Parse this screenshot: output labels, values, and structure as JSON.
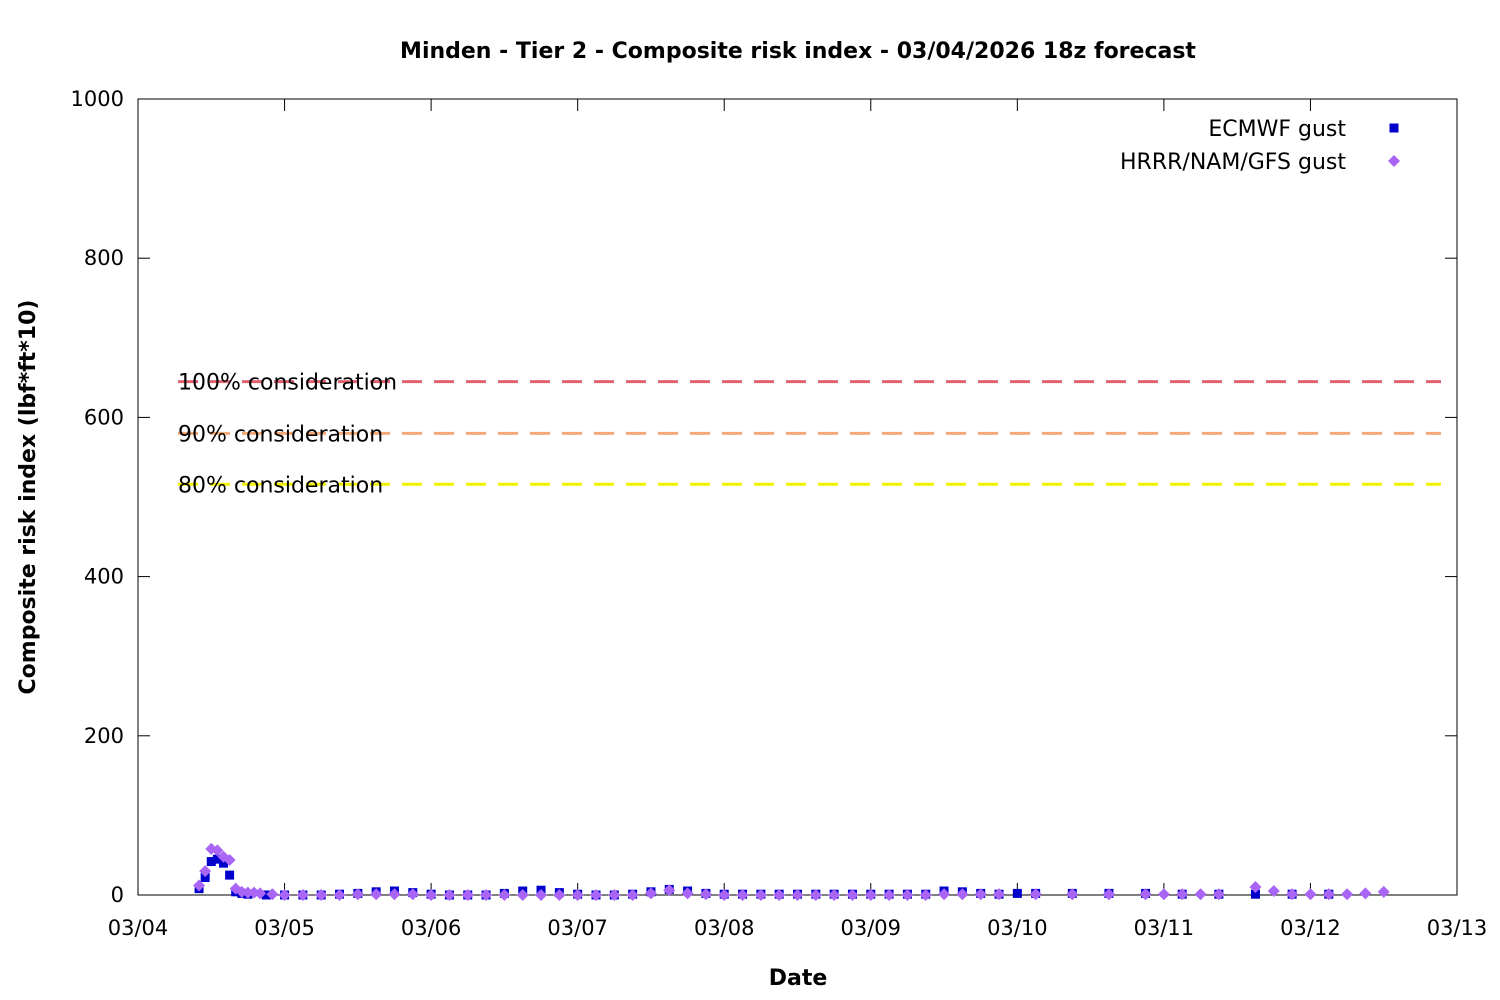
{
  "chart_data": {
    "type": "scatter",
    "title": "Minden - Tier 2 - Composite risk index - 03/04/2026 18z forecast",
    "xlabel": "Date",
    "ylabel": "Composite risk index (lbf*ft*10)",
    "xlim": [
      "03/04",
      "03/13"
    ],
    "ylim": [
      0,
      1000
    ],
    "x_ticks": [
      "03/04",
      "03/05",
      "03/06",
      "03/07",
      "03/08",
      "03/09",
      "03/10",
      "03/11",
      "03/12",
      "03/13"
    ],
    "y_ticks": [
      0,
      200,
      400,
      600,
      800,
      1000
    ],
    "grid": false,
    "legend_position": "top-right",
    "thresholds": [
      {
        "label": "100% consideration",
        "value": 645,
        "color": "#e06070"
      },
      {
        "label": "90% consideration",
        "value": 580,
        "color": "#f4aa78"
      },
      {
        "label": "80% consideration",
        "value": 516,
        "color": "#f0f000"
      }
    ],
    "series": [
      {
        "name": "ECMWF gust",
        "marker": "square",
        "color": "#0000cc",
        "points": [
          [
            "03/04 10:00",
            8
          ],
          [
            "03/04 11:00",
            22
          ],
          [
            "03/04 12:00",
            42
          ],
          [
            "03/04 13:00",
            45
          ],
          [
            "03/04 14:00",
            40
          ],
          [
            "03/04 15:00",
            25
          ],
          [
            "03/04 16:00",
            4
          ],
          [
            "03/04 17:00",
            2
          ],
          [
            "03/04 18:00",
            1
          ],
          [
            "03/04 21:00",
            0
          ],
          [
            "03/05 00:00",
            0
          ],
          [
            "03/05 03:00",
            0
          ],
          [
            "03/05 06:00",
            0
          ],
          [
            "03/05 09:00",
            1
          ],
          [
            "03/05 12:00",
            2
          ],
          [
            "03/05 15:00",
            4
          ],
          [
            "03/05 18:00",
            5
          ],
          [
            "03/05 21:00",
            3
          ],
          [
            "03/06 00:00",
            1
          ],
          [
            "03/06 03:00",
            0
          ],
          [
            "03/06 06:00",
            0
          ],
          [
            "03/06 09:00",
            0
          ],
          [
            "03/06 12:00",
            2
          ],
          [
            "03/06 15:00",
            5
          ],
          [
            "03/06 18:00",
            6
          ],
          [
            "03/06 21:00",
            3
          ],
          [
            "03/07 00:00",
            1
          ],
          [
            "03/07 03:00",
            0
          ],
          [
            "03/07 06:00",
            0
          ],
          [
            "03/07 09:00",
            1
          ],
          [
            "03/07 12:00",
            4
          ],
          [
            "03/07 15:00",
            7
          ],
          [
            "03/07 18:00",
            5
          ],
          [
            "03/07 21:00",
            2
          ],
          [
            "03/08 00:00",
            1
          ],
          [
            "03/08 03:00",
            1
          ],
          [
            "03/08 06:00",
            1
          ],
          [
            "03/08 09:00",
            1
          ],
          [
            "03/08 12:00",
            1
          ],
          [
            "03/08 15:00",
            1
          ],
          [
            "03/08 18:00",
            1
          ],
          [
            "03/08 21:00",
            1
          ],
          [
            "03/09 00:00",
            1
          ],
          [
            "03/09 03:00",
            1
          ],
          [
            "03/09 06:00",
            1
          ],
          [
            "03/09 09:00",
            1
          ],
          [
            "03/09 12:00",
            5
          ],
          [
            "03/09 15:00",
            4
          ],
          [
            "03/09 18:00",
            2
          ],
          [
            "03/09 21:00",
            1
          ],
          [
            "03/10 00:00",
            2
          ],
          [
            "03/10 03:00",
            2
          ],
          [
            "03/10 09:00",
            2
          ],
          [
            "03/10 15:00",
            2
          ],
          [
            "03/10 21:00",
            2
          ],
          [
            "03/11 03:00",
            1
          ],
          [
            "03/11 09:00",
            1
          ],
          [
            "03/11 15:00",
            1
          ],
          [
            "03/11 21:00",
            1
          ],
          [
            "03/12 03:00",
            1
          ]
        ]
      },
      {
        "name": "HRRR/NAM/GFS gust",
        "marker": "diamond",
        "color": "#a965f5",
        "points": [
          [
            "03/04 10:00",
            12
          ],
          [
            "03/04 11:00",
            30
          ],
          [
            "03/04 12:00",
            58
          ],
          [
            "03/04 13:00",
            56
          ],
          [
            "03/04 14:00",
            48
          ],
          [
            "03/04 15:00",
            44
          ],
          [
            "03/04 16:00",
            8
          ],
          [
            "03/04 17:00",
            4
          ],
          [
            "03/04 18:00",
            3
          ],
          [
            "03/04 19:00",
            3
          ],
          [
            "03/04 20:00",
            2
          ],
          [
            "03/04 22:00",
            1
          ],
          [
            "03/05 00:00",
            0
          ],
          [
            "03/05 03:00",
            0
          ],
          [
            "03/05 06:00",
            0
          ],
          [
            "03/05 09:00",
            0
          ],
          [
            "03/05 12:00",
            1
          ],
          [
            "03/05 15:00",
            1
          ],
          [
            "03/05 18:00",
            1
          ],
          [
            "03/05 21:00",
            1
          ],
          [
            "03/06 00:00",
            0
          ],
          [
            "03/06 03:00",
            0
          ],
          [
            "03/06 06:00",
            0
          ],
          [
            "03/06 09:00",
            0
          ],
          [
            "03/06 12:00",
            0
          ],
          [
            "03/06 15:00",
            0
          ],
          [
            "03/06 18:00",
            0
          ],
          [
            "03/06 21:00",
            0
          ],
          [
            "03/07 00:00",
            0
          ],
          [
            "03/07 03:00",
            0
          ],
          [
            "03/07 06:00",
            0
          ],
          [
            "03/07 09:00",
            0
          ],
          [
            "03/07 12:00",
            2
          ],
          [
            "03/07 15:00",
            6
          ],
          [
            "03/07 18:00",
            2
          ],
          [
            "03/07 21:00",
            1
          ],
          [
            "03/08 00:00",
            0
          ],
          [
            "03/08 03:00",
            0
          ],
          [
            "03/08 06:00",
            0
          ],
          [
            "03/08 09:00",
            0
          ],
          [
            "03/08 12:00",
            0
          ],
          [
            "03/08 15:00",
            0
          ],
          [
            "03/08 18:00",
            0
          ],
          [
            "03/08 21:00",
            0
          ],
          [
            "03/09 00:00",
            0
          ],
          [
            "03/09 03:00",
            0
          ],
          [
            "03/09 06:00",
            0
          ],
          [
            "03/09 09:00",
            0
          ],
          [
            "03/09 12:00",
            1
          ],
          [
            "03/09 15:00",
            1
          ],
          [
            "03/09 18:00",
            1
          ],
          [
            "03/09 21:00",
            1
          ],
          [
            "03/10 03:00",
            1
          ],
          [
            "03/10 09:00",
            1
          ],
          [
            "03/10 15:00",
            1
          ],
          [
            "03/10 21:00",
            1
          ],
          [
            "03/11 00:00",
            1
          ],
          [
            "03/11 03:00",
            1
          ],
          [
            "03/11 06:00",
            1
          ],
          [
            "03/11 09:00",
            1
          ],
          [
            "03/11 15:00",
            10
          ],
          [
            "03/11 18:00",
            5
          ],
          [
            "03/11 21:00",
            1
          ],
          [
            "03/12 00:00",
            1
          ],
          [
            "03/12 03:00",
            1
          ],
          [
            "03/12 06:00",
            1
          ],
          [
            "03/12 09:00",
            2
          ],
          [
            "03/12 12:00",
            4
          ]
        ]
      }
    ]
  }
}
